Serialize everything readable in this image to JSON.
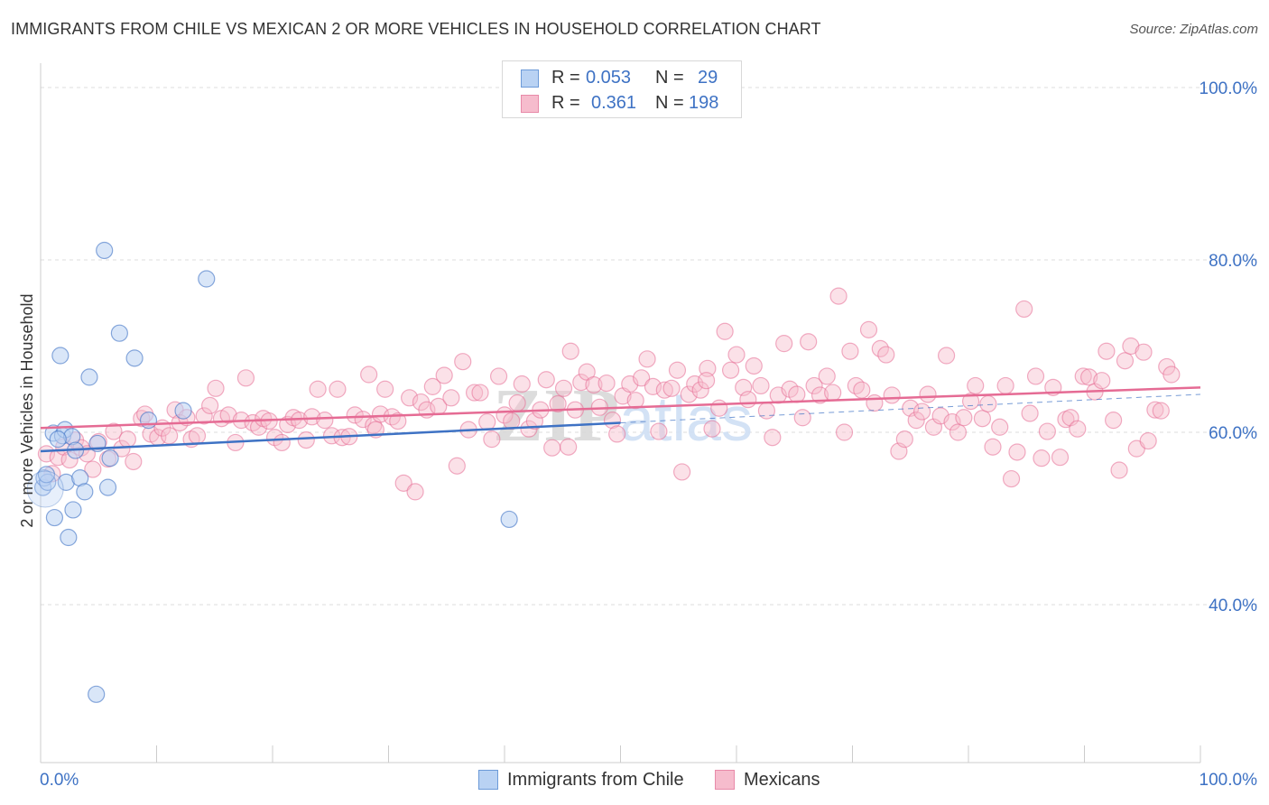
{
  "title": "IMMIGRANTS FROM CHILE VS MEXICAN 2 OR MORE VEHICLES IN HOUSEHOLD CORRELATION CHART",
  "source": "Source: ZipAtlas.com",
  "colors": {
    "blue": "#3e72c4",
    "blue_fill": "#b9d2f3",
    "pink": "#e56b94",
    "pink_fill": "#f6bccd",
    "grid": "#dddddd",
    "axis_text": "#3e72c4"
  },
  "legend_top": {
    "rows": [
      {
        "r_label": "R =",
        "r_value": "0.053",
        "n_label": "N =",
        "n_value": "29"
      },
      {
        "r_label": "R =",
        "r_value": "0.361",
        "n_label": "N =",
        "n_value": "198"
      }
    ]
  },
  "legend_bottom": [
    "Immigrants from Chile",
    "Mexicans"
  ],
  "watermark": "ZIPatlas",
  "chart_data": {
    "type": "scatter",
    "title": "IMMIGRANTS FROM CHILE VS MEXICAN 2 OR MORE VEHICLES IN HOUSEHOLD CORRELATION CHART",
    "xlabel": "",
    "ylabel": "2 or more Vehicles in Household",
    "xlim": [
      0,
      100
    ],
    "ylim": [
      18,
      102
    ],
    "x_tick_labels": [
      "0.0%",
      "100.0%"
    ],
    "y_ticks": [
      40,
      60,
      80,
      100
    ],
    "y_tick_labels": [
      "40.0%",
      "60.0%",
      "80.0%",
      "100.0%"
    ],
    "grid": true,
    "legend_position": "top-center",
    "series": [
      {
        "name": "Immigrants from Chile",
        "color": "#3e72c4",
        "R": 0.053,
        "N": 29,
        "trend": {
          "x": [
            0,
            50
          ],
          "y": [
            57.8,
            61.1
          ]
        },
        "points": [
          [
            0.2,
            53.6
          ],
          [
            0.3,
            54.7
          ],
          [
            0.6,
            54.2
          ],
          [
            1.1,
            59.9
          ],
          [
            1.2,
            50.1
          ],
          [
            1.7,
            68.9
          ],
          [
            1.9,
            59.6
          ],
          [
            2.1,
            60.3
          ],
          [
            2.2,
            54.2
          ],
          [
            2.4,
            47.8
          ],
          [
            2.7,
            59.5
          ],
          [
            2.8,
            51.0
          ],
          [
            3.0,
            57.9
          ],
          [
            3.4,
            54.7
          ],
          [
            3.8,
            53.1
          ],
          [
            4.2,
            66.4
          ],
          [
            4.9,
            58.7
          ],
          [
            5.5,
            81.1
          ],
          [
            5.8,
            53.6
          ],
          [
            6.0,
            57.0
          ],
          [
            6.8,
            71.5
          ],
          [
            8.1,
            68.6
          ],
          [
            9.3,
            61.4
          ],
          [
            12.3,
            62.5
          ],
          [
            14.3,
            77.8
          ],
          [
            40.4,
            49.9
          ],
          [
            4.8,
            29.6
          ],
          [
            0.5,
            55.1
          ],
          [
            1.5,
            59.2
          ]
        ]
      },
      {
        "name": "Mexicans",
        "color": "#e56b94",
        "R": 0.361,
        "N": 198,
        "trend": {
          "x": [
            0,
            100
          ],
          "y": [
            60.5,
            65.2
          ]
        },
        "points": [
          [
            0.5,
            57.5
          ],
          [
            1.0,
            55.2
          ],
          [
            1.5,
            57.1
          ],
          [
            2.0,
            58.3
          ],
          [
            2.5,
            56.8
          ],
          [
            3.0,
            59.1
          ],
          [
            3.5,
            58.2
          ],
          [
            4.0,
            57.5
          ],
          [
            4.5,
            55.7
          ],
          [
            5.0,
            58.9
          ],
          [
            5.8,
            56.9
          ],
          [
            6.3,
            60.1
          ],
          [
            7.0,
            58.1
          ],
          [
            7.5,
            59.2
          ],
          [
            8.0,
            56.6
          ],
          [
            8.7,
            61.6
          ],
          [
            9.0,
            62.1
          ],
          [
            9.5,
            59.8
          ],
          [
            10.1,
            59.4
          ],
          [
            10.5,
            60.5
          ],
          [
            11.1,
            59.6
          ],
          [
            11.6,
            62.6
          ],
          [
            12.0,
            61.1
          ],
          [
            12.6,
            61.7
          ],
          [
            13.0,
            59.2
          ],
          [
            13.5,
            59.6
          ],
          [
            14.1,
            61.9
          ],
          [
            14.6,
            63.1
          ],
          [
            15.1,
            65.1
          ],
          [
            15.6,
            61.6
          ],
          [
            16.2,
            62.0
          ],
          [
            16.8,
            58.8
          ],
          [
            17.3,
            61.4
          ],
          [
            17.7,
            66.3
          ],
          [
            18.3,
            61.1
          ],
          [
            18.8,
            60.6
          ],
          [
            19.2,
            61.6
          ],
          [
            19.7,
            61.3
          ],
          [
            20.2,
            59.4
          ],
          [
            20.8,
            58.8
          ],
          [
            21.3,
            60.9
          ],
          [
            21.8,
            61.7
          ],
          [
            22.3,
            61.4
          ],
          [
            22.9,
            59.1
          ],
          [
            23.4,
            61.8
          ],
          [
            23.9,
            65.0
          ],
          [
            24.5,
            61.4
          ],
          [
            25.1,
            59.6
          ],
          [
            25.6,
            65.0
          ],
          [
            26.0,
            59.4
          ],
          [
            26.6,
            59.5
          ],
          [
            27.1,
            62.0
          ],
          [
            27.8,
            61.5
          ],
          [
            28.3,
            66.7
          ],
          [
            28.7,
            60.8
          ],
          [
            29.3,
            62.1
          ],
          [
            29.7,
            65.0
          ],
          [
            30.3,
            61.8
          ],
          [
            30.8,
            61.3
          ],
          [
            31.3,
            54.1
          ],
          [
            31.8,
            64.0
          ],
          [
            32.3,
            53.1
          ],
          [
            32.8,
            63.5
          ],
          [
            33.3,
            62.6
          ],
          [
            33.8,
            65.3
          ],
          [
            34.3,
            63.0
          ],
          [
            34.8,
            66.6
          ],
          [
            35.4,
            64.0
          ],
          [
            35.9,
            56.1
          ],
          [
            36.4,
            68.2
          ],
          [
            36.9,
            60.3
          ],
          [
            37.4,
            64.6
          ],
          [
            37.9,
            64.6
          ],
          [
            38.5,
            61.2
          ],
          [
            38.9,
            59.2
          ],
          [
            39.5,
            66.5
          ],
          [
            40.0,
            62.0
          ],
          [
            40.6,
            61.3
          ],
          [
            41.1,
            63.4
          ],
          [
            41.5,
            65.6
          ],
          [
            42.1,
            60.4
          ],
          [
            42.6,
            61.3
          ],
          [
            43.1,
            62.6
          ],
          [
            43.6,
            66.1
          ],
          [
            44.1,
            58.2
          ],
          [
            44.6,
            63.3
          ],
          [
            45.1,
            65.1
          ],
          [
            45.7,
            69.4
          ],
          [
            46.1,
            62.6
          ],
          [
            46.6,
            65.8
          ],
          [
            47.1,
            67.0
          ],
          [
            47.7,
            65.5
          ],
          [
            48.2,
            62.9
          ],
          [
            48.8,
            65.7
          ],
          [
            49.3,
            61.4
          ],
          [
            49.7,
            59.8
          ],
          [
            50.2,
            64.2
          ],
          [
            50.8,
            65.6
          ],
          [
            51.3,
            63.7
          ],
          [
            51.8,
            66.3
          ],
          [
            52.3,
            68.5
          ],
          [
            52.8,
            65.3
          ],
          [
            53.3,
            60.1
          ],
          [
            53.8,
            64.9
          ],
          [
            54.4,
            65.1
          ],
          [
            54.9,
            67.2
          ],
          [
            55.3,
            55.4
          ],
          [
            55.9,
            64.4
          ],
          [
            56.4,
            65.6
          ],
          [
            56.9,
            64.9
          ],
          [
            57.5,
            67.4
          ],
          [
            57.9,
            60.4
          ],
          [
            58.5,
            62.8
          ],
          [
            59.0,
            71.7
          ],
          [
            59.5,
            67.2
          ],
          [
            60.0,
            69.0
          ],
          [
            60.6,
            65.2
          ],
          [
            61.0,
            63.8
          ],
          [
            61.5,
            67.7
          ],
          [
            62.1,
            65.4
          ],
          [
            62.6,
            62.5
          ],
          [
            63.1,
            59.4
          ],
          [
            63.6,
            64.3
          ],
          [
            64.1,
            70.3
          ],
          [
            64.6,
            65.0
          ],
          [
            65.2,
            64.4
          ],
          [
            65.7,
            61.7
          ],
          [
            66.2,
            70.5
          ],
          [
            66.7,
            65.4
          ],
          [
            67.2,
            64.3
          ],
          [
            67.8,
            66.5
          ],
          [
            68.3,
            64.6
          ],
          [
            68.8,
            75.8
          ],
          [
            69.3,
            60.0
          ],
          [
            69.8,
            69.4
          ],
          [
            70.3,
            65.4
          ],
          [
            70.8,
            64.9
          ],
          [
            71.4,
            71.9
          ],
          [
            71.9,
            63.4
          ],
          [
            72.4,
            69.7
          ],
          [
            72.9,
            69.0
          ],
          [
            73.4,
            64.3
          ],
          [
            74.0,
            57.8
          ],
          [
            74.5,
            59.2
          ],
          [
            75.0,
            62.8
          ],
          [
            75.5,
            61.4
          ],
          [
            76.0,
            62.4
          ],
          [
            76.5,
            64.4
          ],
          [
            77.0,
            60.6
          ],
          [
            77.6,
            61.9
          ],
          [
            78.1,
            68.9
          ],
          [
            78.6,
            61.2
          ],
          [
            79.1,
            60.0
          ],
          [
            79.6,
            61.7
          ],
          [
            80.2,
            63.6
          ],
          [
            80.6,
            65.4
          ],
          [
            81.2,
            61.6
          ],
          [
            81.7,
            63.3
          ],
          [
            82.1,
            58.3
          ],
          [
            82.7,
            60.6
          ],
          [
            83.2,
            65.4
          ],
          [
            83.7,
            54.6
          ],
          [
            84.2,
            57.7
          ],
          [
            84.8,
            74.3
          ],
          [
            85.3,
            62.2
          ],
          [
            85.8,
            66.5
          ],
          [
            86.3,
            57.0
          ],
          [
            86.8,
            60.1
          ],
          [
            87.3,
            65.2
          ],
          [
            87.9,
            57.1
          ],
          [
            88.4,
            61.5
          ],
          [
            88.8,
            61.7
          ],
          [
            89.4,
            60.4
          ],
          [
            89.9,
            66.5
          ],
          [
            90.4,
            66.4
          ],
          [
            90.9,
            64.7
          ],
          [
            91.5,
            66.0
          ],
          [
            91.9,
            69.4
          ],
          [
            92.5,
            61.4
          ],
          [
            93.0,
            55.6
          ],
          [
            93.5,
            68.3
          ],
          [
            94.0,
            70.0
          ],
          [
            94.5,
            58.1
          ],
          [
            95.1,
            69.3
          ],
          [
            95.5,
            59.0
          ],
          [
            96.1,
            62.6
          ],
          [
            96.6,
            62.5
          ],
          [
            97.1,
            67.6
          ],
          [
            97.5,
            66.7
          ],
          [
            57.4,
            66.0
          ],
          [
            28.9,
            60.3
          ],
          [
            45.5,
            58.3
          ]
        ]
      }
    ]
  }
}
